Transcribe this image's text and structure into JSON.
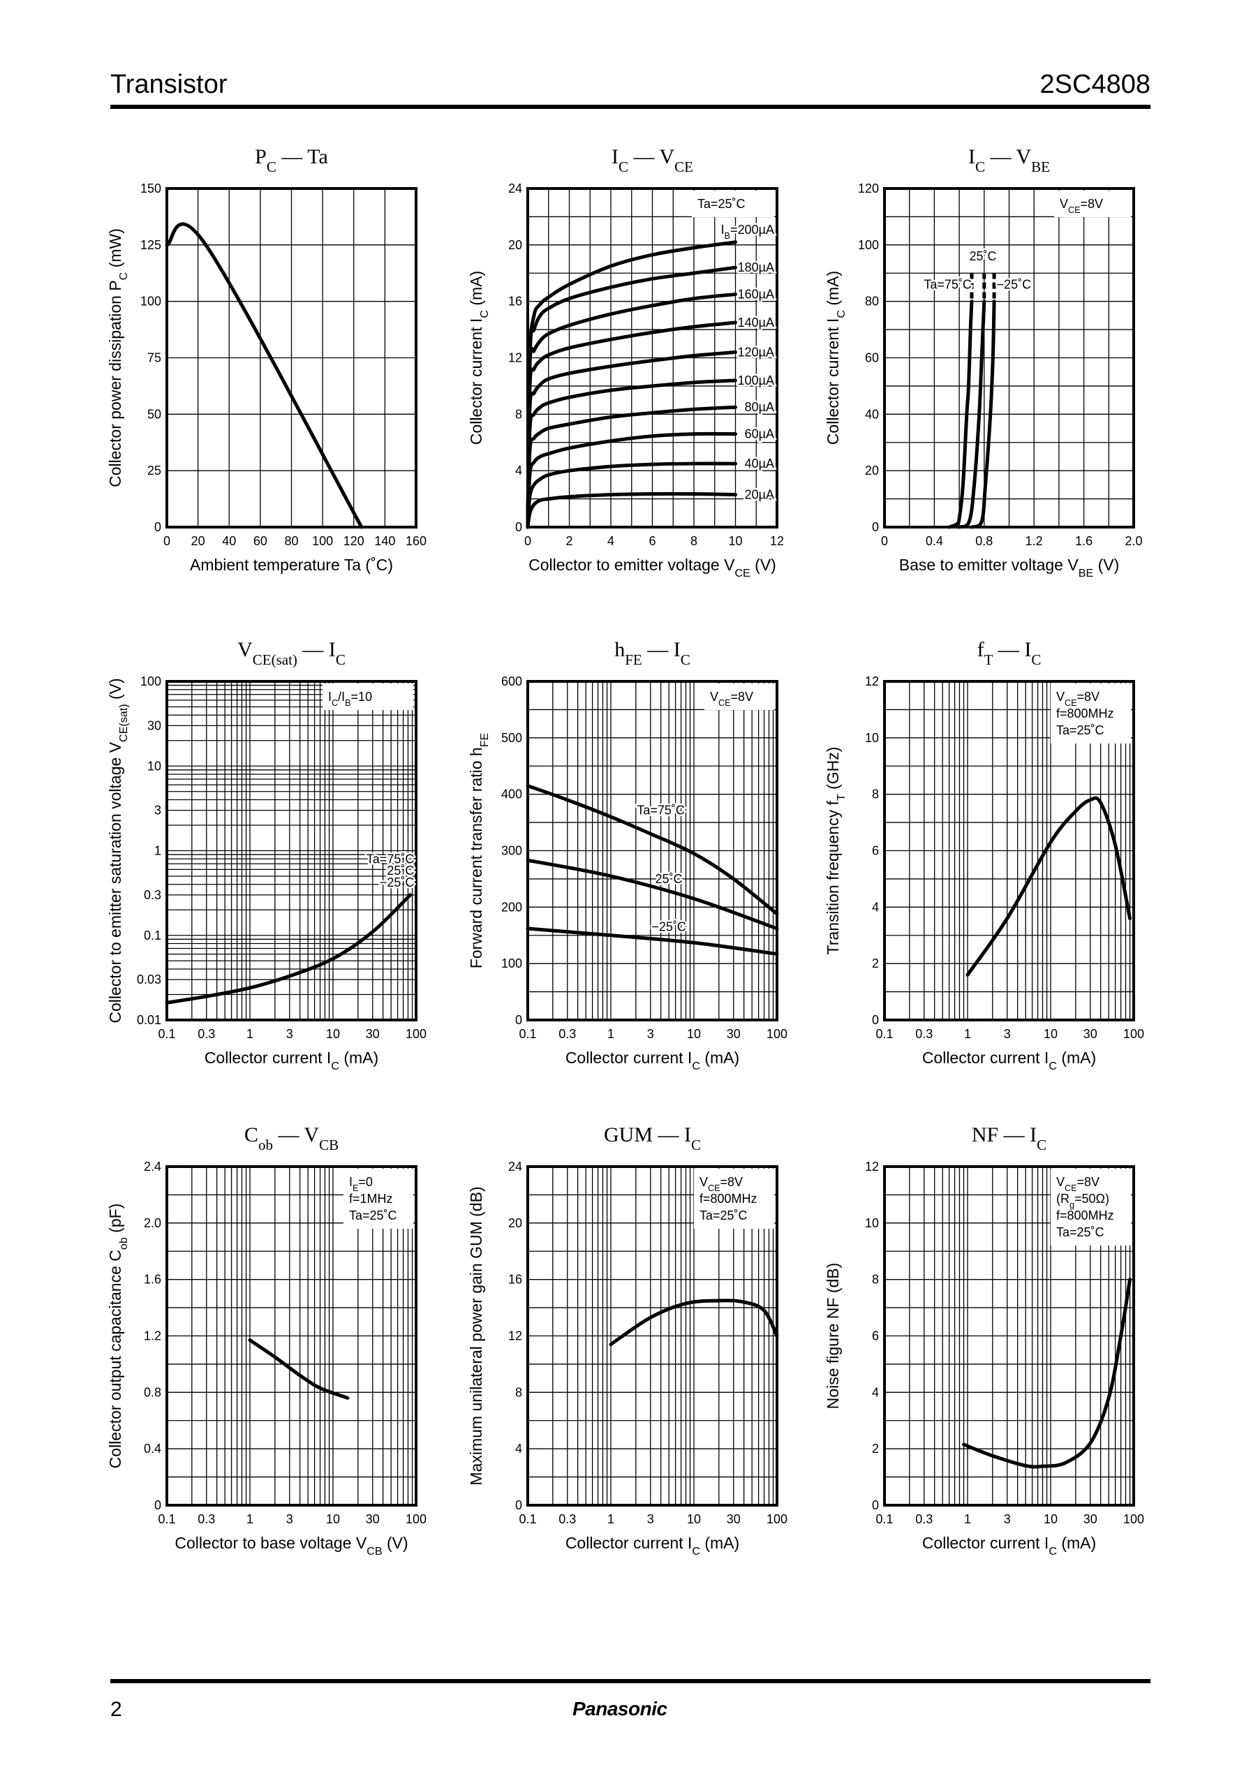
{
  "header": {
    "category": "Transistor",
    "part_number": "2SC4808"
  },
  "footer": {
    "page": "2",
    "brand": "Panasonic"
  },
  "chart_data": [
    {
      "type": "line",
      "title": [
        "P",
        {
          "sub": "C"
        },
        " — Ta"
      ],
      "xlabel": [
        "Ambient temperature   Ta   (˚C)"
      ],
      "ylabel": [
        "Collector power dissipation   P",
        {
          "sub": "C"
        },
        "   (mW)"
      ],
      "xscale": "linear",
      "xlim": [
        0,
        160
      ],
      "xticks": [
        "0",
        "20",
        "40",
        "60",
        "80",
        "100",
        "120",
        "140",
        "160"
      ],
      "yscale": "linear",
      "ylim": [
        0,
        150
      ],
      "yticks": [
        "0",
        "25",
        "50",
        "75",
        "100",
        "125",
        "150"
      ],
      "grid": true,
      "notes": [],
      "series": [
        {
          "x": [
            0,
            25,
            125
          ],
          "y": [
            125,
            125,
            0
          ]
        }
      ],
      "annotations": []
    },
    {
      "type": "line",
      "title": [
        "I",
        {
          "sub": "C"
        },
        " — V",
        {
          "sub": "CE"
        }
      ],
      "xlabel": [
        "Collector to emitter voltage   V",
        {
          "sub": "CE"
        },
        "   (V)"
      ],
      "ylabel": [
        "Collector current   I",
        {
          "sub": "C"
        },
        "   (mA)"
      ],
      "xscale": "linear",
      "xlim": [
        0,
        12
      ],
      "xticks": [
        "0",
        "2",
        "4",
        "6",
        "8",
        "10",
        "12"
      ],
      "yscale": "linear",
      "ylim": [
        0,
        24
      ],
      "yticks": [
        "0",
        "4",
        "8",
        "12",
        "16",
        "20",
        "24"
      ],
      "grid": true,
      "notes": [
        [
          "Ta=25˚C"
        ]
      ],
      "series": [
        {
          "name": "20µA",
          "x": [
            0,
            0.1,
            0.3,
            0.6,
            1,
            2,
            4,
            6,
            8,
            10
          ],
          "y": [
            0,
            1.0,
            1.6,
            1.9,
            2.0,
            2.15,
            2.3,
            2.35,
            2.35,
            2.3
          ]
        },
        {
          "name": "40µA",
          "x": [
            0,
            0.1,
            0.3,
            0.6,
            1,
            2,
            4,
            6,
            8,
            10
          ],
          "y": [
            0,
            2.2,
            3.0,
            3.4,
            3.7,
            4.0,
            4.3,
            4.45,
            4.5,
            4.5
          ]
        },
        {
          "name": "60µA",
          "x": [
            0,
            0.1,
            0.3,
            0.6,
            1,
            2,
            4,
            6,
            8,
            10
          ],
          "y": [
            0,
            3.8,
            4.6,
            5.0,
            5.2,
            5.6,
            6.1,
            6.45,
            6.6,
            6.6
          ]
        },
        {
          "name": "80µA",
          "x": [
            0,
            0.1,
            0.3,
            0.6,
            1,
            2,
            4,
            6,
            8,
            10
          ],
          "y": [
            0,
            5.5,
            6.3,
            6.7,
            7.0,
            7.3,
            7.8,
            8.1,
            8.35,
            8.5
          ]
        },
        {
          "name": "100µA",
          "x": [
            0,
            0.1,
            0.3,
            0.6,
            1,
            2,
            4,
            6,
            8,
            10
          ],
          "y": [
            0,
            7.0,
            8.0,
            8.5,
            8.8,
            9.2,
            9.7,
            10.0,
            10.25,
            10.4
          ]
        },
        {
          "name": "120µA",
          "x": [
            0,
            0.1,
            0.3,
            0.6,
            1,
            2,
            4,
            6,
            8,
            10
          ],
          "y": [
            0,
            8.5,
            9.5,
            10.1,
            10.5,
            10.9,
            11.4,
            11.8,
            12.15,
            12.4
          ]
        },
        {
          "name": "140µA",
          "x": [
            0,
            0.1,
            0.3,
            0.6,
            1,
            2,
            4,
            6,
            8,
            10
          ],
          "y": [
            0,
            10.0,
            11.2,
            11.8,
            12.2,
            12.7,
            13.3,
            13.8,
            14.2,
            14.5
          ]
        },
        {
          "name": "160µA",
          "x": [
            0,
            0.1,
            0.3,
            0.6,
            1,
            2,
            4,
            6,
            8,
            10
          ],
          "y": [
            0,
            11.5,
            12.5,
            13.2,
            13.7,
            14.3,
            15.1,
            15.7,
            16.2,
            16.5
          ]
        },
        {
          "name": "180µA",
          "x": [
            0,
            0.1,
            0.3,
            0.6,
            1,
            2,
            4,
            6,
            8,
            10
          ],
          "y": [
            0,
            12.5,
            14.0,
            15.0,
            15.5,
            16.2,
            17.0,
            17.6,
            18.0,
            18.4
          ]
        },
        {
          "name": "200µA",
          "x": [
            0,
            0.1,
            0.3,
            0.6,
            1,
            2,
            4,
            6,
            8,
            10
          ],
          "y": [
            0,
            12.0,
            15.0,
            15.8,
            16.3,
            17.2,
            18.5,
            19.3,
            19.8,
            20.2
          ]
        }
      ],
      "annotations": [
        [
          "20µA"
        ],
        [
          "40µA"
        ],
        [
          "60µA"
        ],
        [
          "80µA"
        ],
        [
          "100µA"
        ],
        [
          "120µA"
        ],
        [
          "140µA"
        ],
        [
          "160µA"
        ],
        [
          "180µA"
        ],
        [
          "I",
          {
            "sub": "B"
          },
          "=200µA"
        ]
      ]
    },
    {
      "type": "line",
      "title": [
        "I",
        {
          "sub": "C"
        },
        " — V",
        {
          "sub": "BE"
        }
      ],
      "xlabel": [
        "Base to emitter voltage   V",
        {
          "sub": "BE"
        },
        "   (V)"
      ],
      "ylabel": [
        "Collector current   I",
        {
          "sub": "C"
        },
        "   (mA)"
      ],
      "xscale": "linear",
      "xlim": [
        0,
        2.0
      ],
      "xticks": [
        "0",
        "0.4",
        "0.8",
        "1.2",
        "1.6",
        "2.0"
      ],
      "yscale": "linear",
      "ylim": [
        0,
        120
      ],
      "yticks": [
        "0",
        "20",
        "40",
        "60",
        "80",
        "100",
        "120"
      ],
      "grid": true,
      "notes": [
        [
          "V",
          {
            "sub": "CE"
          },
          "=8V"
        ]
      ],
      "series": [
        {
          "name": "Ta=75˚C",
          "x": [
            0.52,
            0.58,
            0.6,
            0.63,
            0.66,
            0.675,
            0.69,
            0.7,
            0.7
          ],
          "y": [
            0,
            1,
            3,
            15,
            40,
            50,
            70,
            80,
            90
          ]
        },
        {
          "name": "25˚C",
          "x": [
            0.6,
            0.68,
            0.72,
            0.76,
            0.78,
            0.8,
            0.8
          ],
          "y": [
            0,
            2,
            15,
            40,
            60,
            80,
            90
          ]
        },
        {
          "name": "−25˚C",
          "x": [
            0.7,
            0.78,
            0.81,
            0.85,
            0.87,
            0.88,
            0.88
          ],
          "y": [
            0,
            2,
            15,
            40,
            60,
            80,
            90
          ]
        }
      ],
      "annotations": [
        [
          "Ta=75˚C"
        ],
        [
          "25˚C"
        ],
        [
          "−25˚C"
        ]
      ]
    },
    {
      "type": "line",
      "title": [
        "V",
        {
          "sub": "CE(sat)"
        },
        " — I",
        {
          "sub": "C"
        }
      ],
      "xlabel": [
        "Collector current   I",
        {
          "sub": "C"
        },
        "   (mA)"
      ],
      "ylabel": [
        "Collector to emitter saturation voltage   V",
        {
          "sub": "CE(sat)"
        },
        "   (V)"
      ],
      "xscale": "log",
      "xlim": [
        0.1,
        100
      ],
      "xticks": [
        "0.1",
        "0.3",
        "1",
        "3",
        "10",
        "30",
        "100"
      ],
      "yscale": "log",
      "ylim": [
        0.01,
        100
      ],
      "yticks": [
        "0.01",
        "0.03",
        "0.1",
        "0.3",
        "1",
        "3",
        "10",
        "30",
        "100"
      ],
      "grid": true,
      "notes": [
        [
          "I",
          {
            "sub": "C"
          },
          "/I",
          {
            "sub": "B"
          },
          "=10"
        ]
      ],
      "series": [
        {
          "x": [
            0.1,
            0.3,
            1,
            3,
            10,
            30,
            85
          ],
          "y": [
            0.016,
            0.019,
            0.024,
            0.033,
            0.053,
            0.11,
            0.3
          ]
        }
      ],
      "annotations": [
        [
          "Ta=75˚C"
        ],
        [
          "25˚C"
        ],
        [
          "−25˚C"
        ]
      ]
    },
    {
      "type": "line",
      "title": [
        "h",
        {
          "sub": "FE"
        },
        " — I",
        {
          "sub": "C"
        }
      ],
      "xlabel": [
        "Collector current   I",
        {
          "sub": "C"
        },
        "   (mA)"
      ],
      "ylabel": [
        "Forward current transfer ratio   h",
        {
          "sub": "FE"
        }
      ],
      "xscale": "log",
      "xlim": [
        0.1,
        100
      ],
      "xticks": [
        "0.1",
        "0.3",
        "1",
        "3",
        "10",
        "30",
        "100"
      ],
      "yscale": "linear",
      "ylim": [
        0,
        600
      ],
      "yticks": [
        "0",
        "100",
        "200",
        "300",
        "400",
        "500",
        "600"
      ],
      "grid": true,
      "notes": [
        [
          "V",
          {
            "sub": "CE"
          },
          "=8V"
        ]
      ],
      "series": [
        {
          "name": "Ta=75˚C",
          "x": [
            0.1,
            0.3,
            1,
            3,
            10,
            30,
            100
          ],
          "y": [
            415,
            390,
            360,
            330,
            295,
            250,
            188
          ]
        },
        {
          "name": "25˚C",
          "x": [
            0.1,
            1,
            10,
            100
          ],
          "y": [
            283,
            255,
            215,
            162
          ]
        },
        {
          "name": "−25˚C",
          "x": [
            0.1,
            1,
            10,
            100
          ],
          "y": [
            162,
            150,
            137,
            117
          ]
        }
      ],
      "annotations": [
        [
          "Ta=75˚C"
        ],
        [
          "25˚C"
        ],
        [
          "−25˚C"
        ]
      ]
    },
    {
      "type": "line",
      "title": [
        "f",
        {
          "sub": "T"
        },
        " — I",
        {
          "sub": "C"
        }
      ],
      "xlabel": [
        "Collector current   I",
        {
          "sub": "C"
        },
        "   (mA)"
      ],
      "ylabel": [
        "Transition frequency   f",
        {
          "sub": "T"
        },
        "   (GHz)"
      ],
      "xscale": "log",
      "xlim": [
        0.1,
        100
      ],
      "xticks": [
        "0.1",
        "0.3",
        "1",
        "3",
        "10",
        "30",
        "100"
      ],
      "yscale": "linear",
      "ylim": [
        0,
        12
      ],
      "yticks": [
        "0",
        "2",
        "4",
        "6",
        "8",
        "10",
        "12"
      ],
      "grid": true,
      "notes": [
        [
          "V",
          {
            "sub": "CE"
          },
          "=8V"
        ],
        [
          "f=800MHz"
        ],
        [
          "Ta=25˚C"
        ]
      ],
      "series": [
        {
          "x": [
            1,
            3,
            10,
            20,
            30,
            40,
            60,
            90
          ],
          "y": [
            1.6,
            3.6,
            6.3,
            7.4,
            7.8,
            7.7,
            6.2,
            3.6
          ]
        }
      ],
      "annotations": []
    },
    {
      "type": "line",
      "title": [
        "C",
        {
          "sub": "ob"
        },
        " — V",
        {
          "sub": "CB"
        }
      ],
      "xlabel": [
        "Collector to base voltage   V",
        {
          "sub": "CB"
        },
        "   (V)"
      ],
      "ylabel": [
        "Collector output capacitance   C",
        {
          "sub": "ob"
        },
        "   (pF)"
      ],
      "xscale": "log",
      "xlim": [
        0.1,
        100
      ],
      "xticks": [
        "0.1",
        "0.3",
        "1",
        "3",
        "10",
        "30",
        "100"
      ],
      "yscale": "linear",
      "ylim": [
        0,
        2.4
      ],
      "yticks": [
        "0",
        "0.4",
        "0.8",
        "1.2",
        "1.6",
        "2.0",
        "2.4"
      ],
      "grid": true,
      "notes": [
        [
          "I",
          {
            "sub": "E"
          },
          "=0"
        ],
        [
          "f=1MHz"
        ],
        [
          "Ta=25˚C"
        ]
      ],
      "series": [
        {
          "x": [
            1,
            2,
            4,
            7,
            15
          ],
          "y": [
            1.17,
            1.05,
            0.92,
            0.83,
            0.76
          ]
        }
      ],
      "annotations": []
    },
    {
      "type": "line",
      "title": [
        "GUM — I",
        {
          "sub": "C"
        }
      ],
      "xlabel": [
        "Collector current   I",
        {
          "sub": "C"
        },
        "   (mA)"
      ],
      "ylabel": [
        "Maximum unilateral power gain   GUM   (dB)"
      ],
      "xscale": "log",
      "xlim": [
        0.1,
        100
      ],
      "xticks": [
        "0.1",
        "0.3",
        "1",
        "3",
        "10",
        "30",
        "100"
      ],
      "yscale": "linear",
      "ylim": [
        0,
        24
      ],
      "yticks": [
        "0",
        "4",
        "8",
        "12",
        "16",
        "20",
        "24"
      ],
      "grid": true,
      "notes": [
        [
          "V",
          {
            "sub": "CE"
          },
          "=8V"
        ],
        [
          "f=800MHz"
        ],
        [
          "Ta=25˚C"
        ]
      ],
      "series": [
        {
          "x": [
            1,
            3,
            8,
            20,
            40,
            70,
            100
          ],
          "y": [
            11.4,
            13.3,
            14.3,
            14.5,
            14.4,
            13.8,
            12.0
          ]
        }
      ],
      "annotations": []
    },
    {
      "type": "line",
      "title": [
        "NF — I",
        {
          "sub": "C"
        }
      ],
      "xlabel": [
        "Collector current   I",
        {
          "sub": "C"
        },
        "   (mA)"
      ],
      "ylabel": [
        "Noise figure   NF   (dB)"
      ],
      "xscale": "log",
      "xlim": [
        0.1,
        100
      ],
      "xticks": [
        "0.1",
        "0.3",
        "1",
        "3",
        "10",
        "30",
        "100"
      ],
      "yscale": "linear",
      "ylim": [
        0,
        12
      ],
      "yticks": [
        "0",
        "2",
        "4",
        "6",
        "8",
        "10",
        "12"
      ],
      "grid": true,
      "notes": [
        [
          "V",
          {
            "sub": "CE"
          },
          "=8V"
        ],
        [
          "(R",
          {
            "sub": "g"
          },
          "=50Ω)"
        ],
        [
          "f=800MHz"
        ],
        [
          "Ta=25˚C"
        ]
      ],
      "series": [
        {
          "x": [
            0.9,
            2,
            5,
            8,
            15,
            30,
            50,
            70,
            90
          ],
          "y": [
            2.15,
            1.75,
            1.4,
            1.38,
            1.5,
            2.2,
            3.8,
            6.0,
            8.0
          ]
        }
      ],
      "annotations": []
    }
  ]
}
